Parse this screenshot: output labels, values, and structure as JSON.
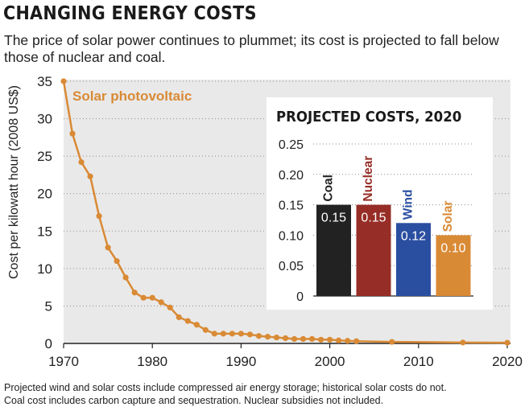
{
  "header": {
    "title": "CHANGING ENERGY COSTS",
    "subtitle": "The price of solar power continues to plummet; its cost is projected to fall below those of nuclear and coal."
  },
  "footnote": {
    "line1": "Projected wind and solar costs include compressed air energy storage; historical solar costs do not.",
    "line2": "Coal cost includes carbon capture and sequestration. Nuclear subsidies not included."
  },
  "chart_data": [
    {
      "type": "line",
      "ylabel": "Cost per kilowatt hour (2008 US$)",
      "xlabel": "",
      "xlim": [
        1970,
        2020
      ],
      "ylim": [
        0,
        35
      ],
      "x_ticks": [
        "1970",
        "1980",
        "1990",
        "2000",
        "2010",
        "2020"
      ],
      "y_ticks": [
        "0",
        "5",
        "10",
        "15",
        "20",
        "25",
        "30",
        "35"
      ],
      "grid": "horizontal dotted",
      "series": [
        {
          "name": "Solar photovoltaic",
          "color": "#d98a35",
          "points": [
            [
              1970,
              35
            ],
            [
              1971,
              28
            ],
            [
              1972,
              24.2
            ],
            [
              1973,
              22.3
            ],
            [
              1974,
              17
            ],
            [
              1975,
              12.8
            ],
            [
              1976,
              11
            ],
            [
              1977,
              8.8
            ],
            [
              1978,
              6.8
            ],
            [
              1979,
              6.1
            ],
            [
              1980,
              6.1
            ],
            [
              1981,
              5.5
            ],
            [
              1982,
              4.8
            ],
            [
              1983,
              3.5
            ],
            [
              1984,
              3.0
            ],
            [
              1985,
              2.5
            ],
            [
              1986,
              1.8
            ],
            [
              1987,
              1.3
            ],
            [
              1988,
              1.3
            ],
            [
              1989,
              1.3
            ],
            [
              1990,
              1.3
            ],
            [
              1991,
              1.2
            ],
            [
              1992,
              1.0
            ],
            [
              1993,
              0.9
            ],
            [
              1994,
              0.8
            ],
            [
              1995,
              0.7
            ],
            [
              1996,
              0.6
            ],
            [
              1997,
              0.6
            ],
            [
              1998,
              0.6
            ],
            [
              1999,
              0.5
            ],
            [
              2000,
              0.5
            ],
            [
              2001,
              0.4
            ],
            [
              2002,
              0.35
            ],
            [
              2003,
              0.3
            ],
            [
              2007,
              0.2
            ],
            [
              2015,
              0.12
            ],
            [
              2020,
              0.1
            ]
          ]
        }
      ]
    },
    {
      "type": "bar",
      "title": "PROJECTED COSTS, 2020",
      "ylim": [
        0,
        0.25
      ],
      "y_ticks": [
        "0",
        "0.05",
        "0.10",
        "0.15",
        "0.20",
        "0.25"
      ],
      "categories": [
        "Coal",
        "Nuclear",
        "Wind",
        "Solar"
      ],
      "values": [
        0.15,
        0.15,
        0.12,
        0.1
      ],
      "value_labels": [
        "0.15",
        "0.15",
        "0.12",
        "0.10"
      ],
      "colors": [
        "#222222",
        "#962d26",
        "#2b4fa0",
        "#d98a35"
      ]
    }
  ]
}
